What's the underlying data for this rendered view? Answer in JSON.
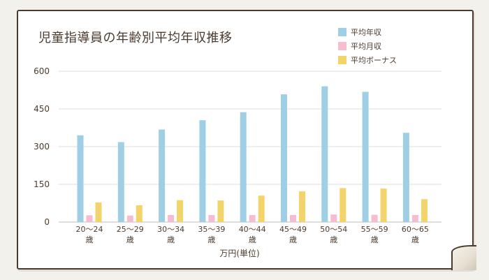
{
  "chart_data": {
    "type": "bar",
    "title": "児童指導員の年齢別平均年収推移",
    "xlabel": "万円(単位)",
    "ylabel": "",
    "ylim": [
      0,
      600
    ],
    "yticks": [
      0,
      150,
      300,
      450,
      600
    ],
    "grid": true,
    "legend_position": "top-right",
    "categories": [
      [
        "20〜24",
        "歳"
      ],
      [
        "25〜29",
        "歳"
      ],
      [
        "30〜34",
        "歳"
      ],
      [
        "35〜39",
        "歳"
      ],
      [
        "40〜44",
        "歳"
      ],
      [
        "45〜49",
        "歳"
      ],
      [
        "50〜54",
        "歳"
      ],
      [
        "55〜59",
        "歳"
      ],
      [
        "60〜65",
        "歳"
      ]
    ],
    "series": [
      {
        "name": "平均年収",
        "color": "#9ecfe4",
        "values": [
          345,
          318,
          368,
          405,
          437,
          508,
          540,
          518,
          355
        ]
      },
      {
        "name": "平均月収",
        "color": "#f5bdd2",
        "values": [
          27,
          26,
          28,
          28,
          28,
          28,
          30,
          29,
          28
        ]
      },
      {
        "name": "平均ボーナス",
        "color": "#f2d46a",
        "values": [
          78,
          67,
          87,
          86,
          105,
          122,
          135,
          133,
          91
        ]
      }
    ]
  }
}
